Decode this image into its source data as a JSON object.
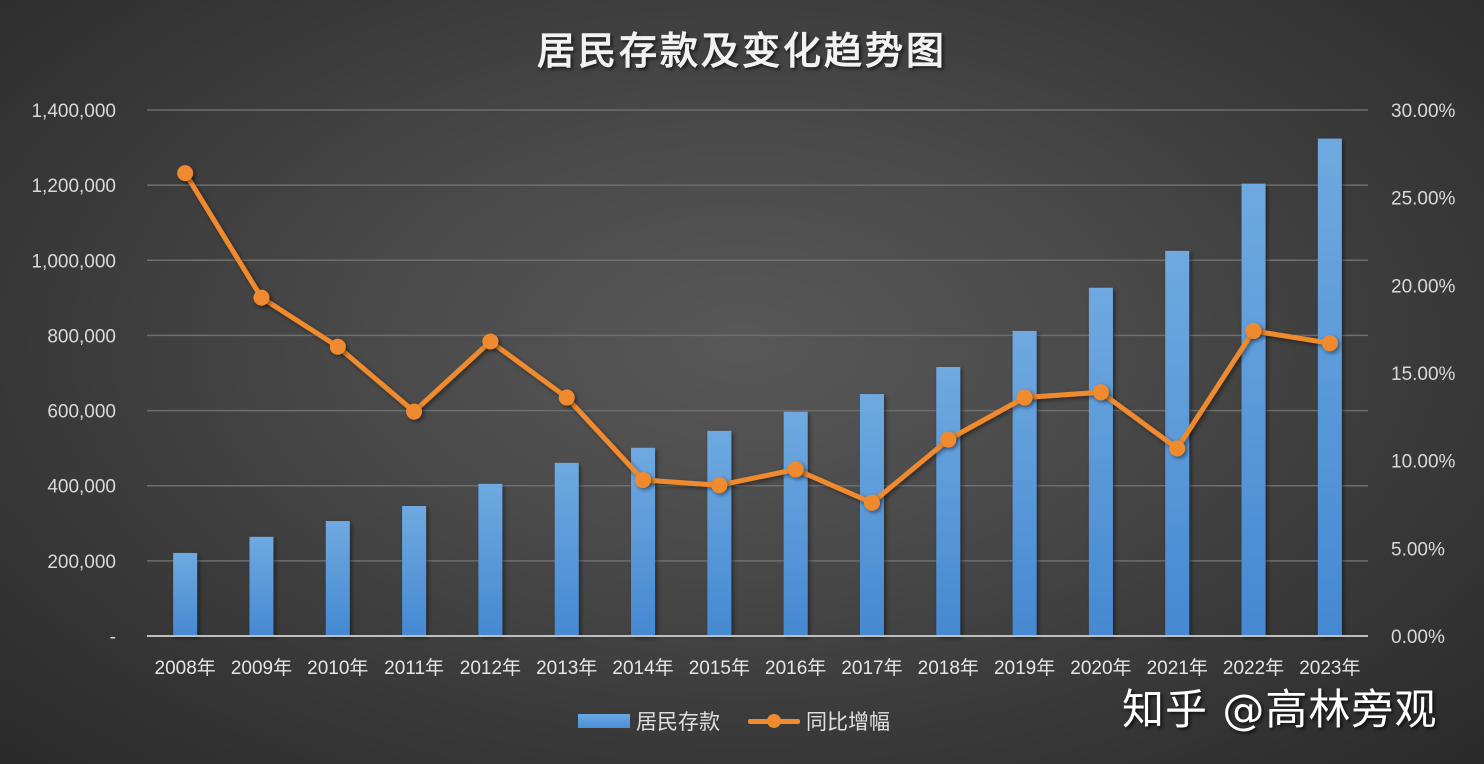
{
  "title": "居民存款及变化趋势图",
  "watermark": "知乎 @高林旁观",
  "legend": [
    {
      "label": "居民存款",
      "type": "bar",
      "color": "#5b9bd5"
    },
    {
      "label": "同比增幅",
      "type": "line",
      "color": "#f08a2e"
    }
  ],
  "axes": {
    "left_ticks": [
      "-",
      "200,000",
      "400,000",
      "600,000",
      "800,000",
      "1,000,000",
      "1,200,000",
      "1,400,000"
    ],
    "right_ticks": [
      "0.00%",
      "5.00%",
      "10.00%",
      "15.00%",
      "20.00%",
      "25.00%",
      "30.00%"
    ]
  },
  "chart_data": {
    "type": "bar+line",
    "title": "居民存款及变化趋势图",
    "xlabel": "",
    "ylabel": "",
    "categories": [
      "2008年",
      "2009年",
      "2010年",
      "2011年",
      "2012年",
      "2013年",
      "2014年",
      "2015年",
      "2016年",
      "2017年",
      "2018年",
      "2019年",
      "2020年",
      "2021年",
      "2022年",
      "2023年"
    ],
    "series": [
      {
        "name": "居民存款",
        "type": "bar",
        "axis": "left",
        "color": "#5b9bd5",
        "values": [
          221000,
          264000,
          306000,
          346000,
          405000,
          461000,
          501000,
          546000,
          597000,
          644000,
          716000,
          812000,
          927000,
          1025000,
          1204000,
          1324000
        ]
      },
      {
        "name": "同比增幅",
        "type": "line",
        "axis": "right",
        "color": "#f08a2e",
        "values": [
          26.4,
          19.3,
          16.5,
          12.8,
          16.8,
          13.6,
          8.9,
          8.6,
          9.5,
          7.6,
          11.2,
          13.6,
          13.9,
          10.7,
          17.4,
          16.7
        ]
      }
    ],
    "ylim_left": [
      0,
      1400000
    ],
    "ylim_right": [
      0,
      30
    ],
    "y_right_format": "percent",
    "grid": true,
    "legend_position": "bottom"
  }
}
